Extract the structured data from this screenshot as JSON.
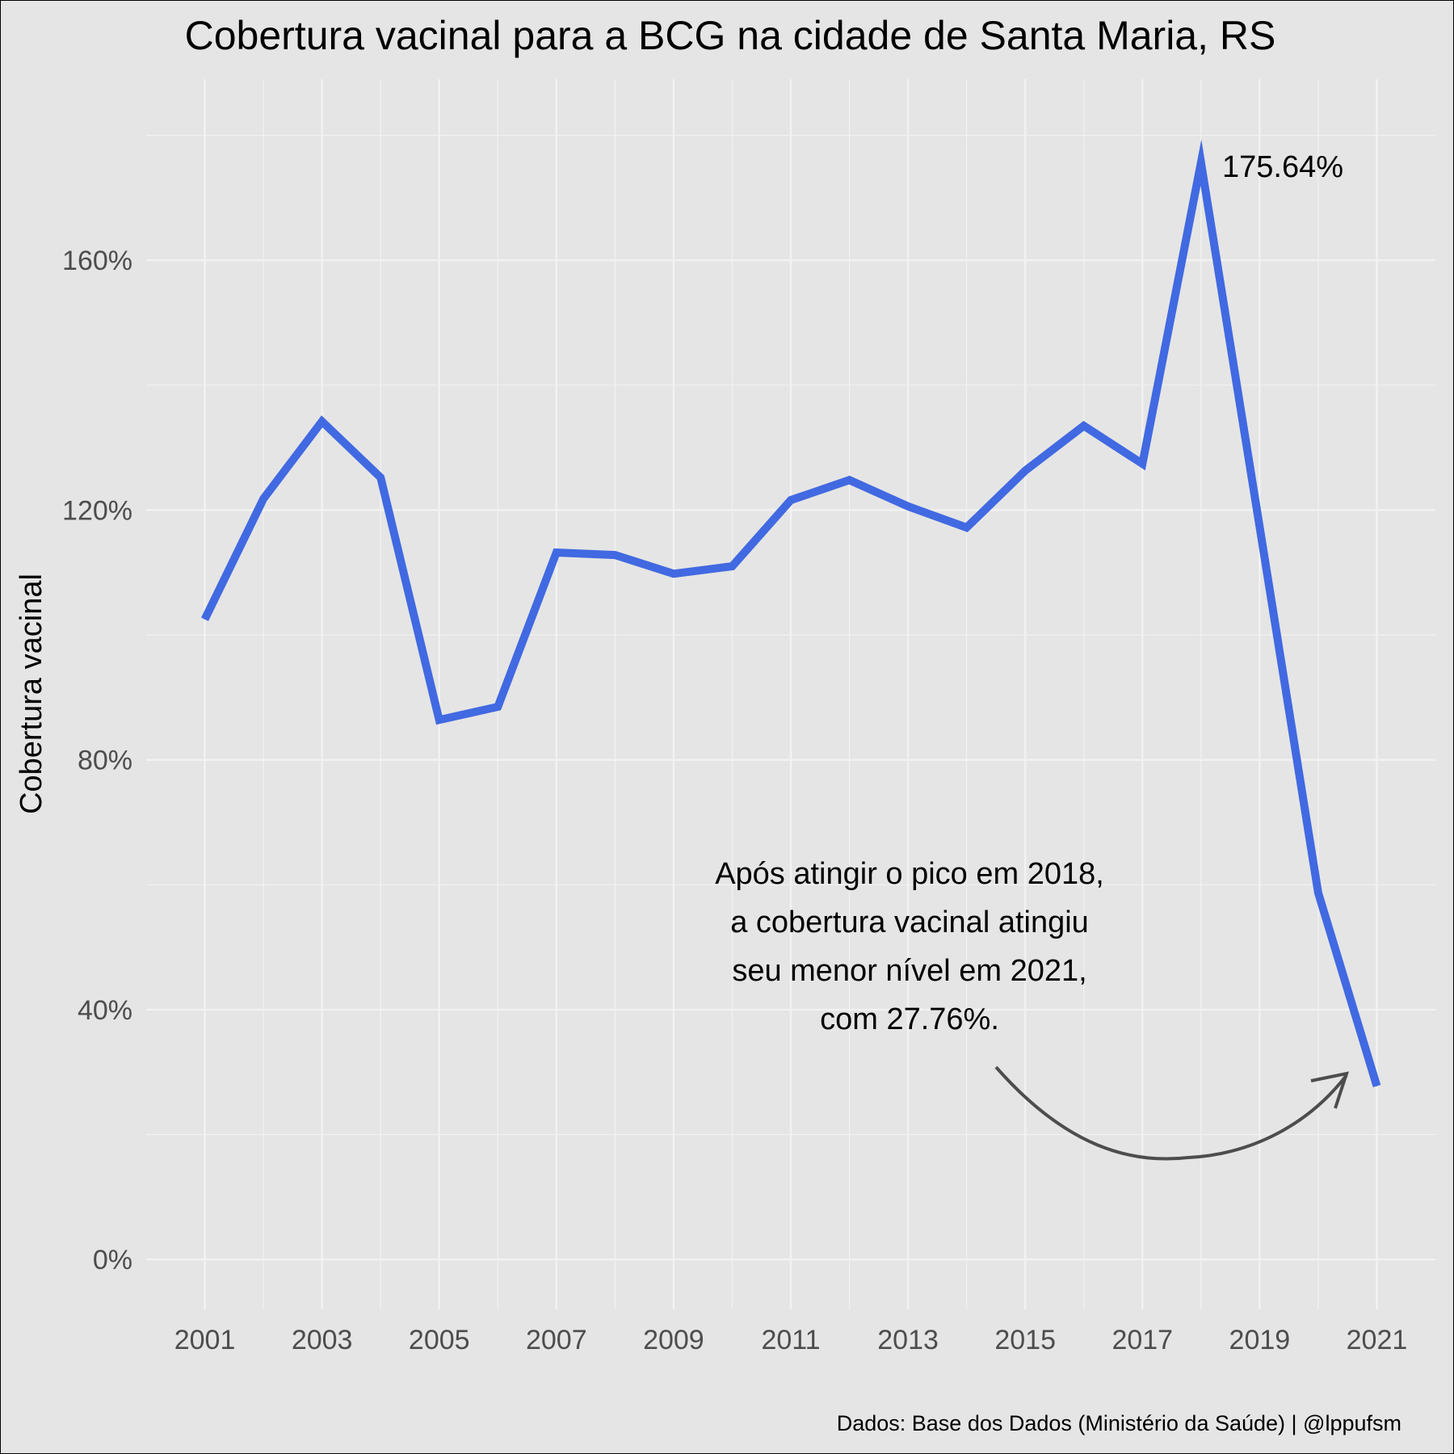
{
  "chart_data": {
    "type": "line",
    "title": "Cobertura vacinal para a BCG na cidade de Santa Maria, RS",
    "xlabel": "",
    "ylabel": "Cobertura vacinal",
    "x": [
      2001,
      2002,
      2003,
      2004,
      2005,
      2006,
      2007,
      2008,
      2009,
      2010,
      2011,
      2012,
      2013,
      2014,
      2015,
      2016,
      2017,
      2018,
      2019,
      2020,
      2021
    ],
    "series": [
      {
        "values": [
          102.5,
          121.8,
          134.2,
          125.2,
          86.4,
          88.5,
          113.2,
          112.8,
          109.8,
          111.0,
          121.6,
          124.8,
          120.6,
          117.2,
          126.3,
          133.5,
          127.4,
          175.64,
          117.3,
          58.7,
          27.76
        ],
        "color": "#4169e1"
      }
    ],
    "x_ticks": [
      "2001",
      "2003",
      "2005",
      "2007",
      "2009",
      "2011",
      "2013",
      "2015",
      "2017",
      "2019",
      "2021"
    ],
    "y_ticks": [
      "0%",
      "40%",
      "80%",
      "120%",
      "160%"
    ],
    "xlim": [
      2000,
      2022.0
    ],
    "ylim": [
      -8,
      189
    ],
    "grid": true,
    "background_color": "#e5e5e5",
    "grid_color": "#f2f2f2",
    "annotations": {
      "peak_label": "175.64%",
      "note_lines": [
        "Após atingir o pico em 2018,",
        "a cobertura vacinal atingiu",
        "seu menor nível em 2021,",
        "com 27.76%."
      ]
    },
    "caption": "Dados: Base dos Dados (Ministério da Saúde) | @lppufsm"
  }
}
